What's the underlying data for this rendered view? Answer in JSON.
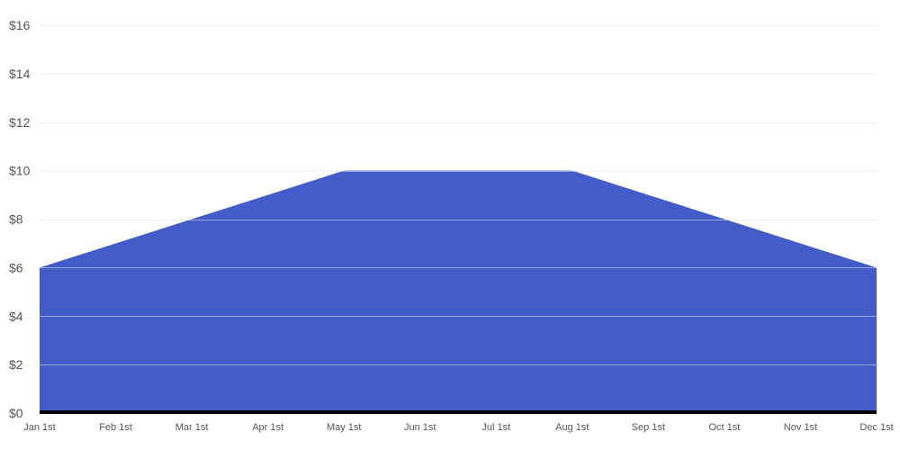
{
  "chart_data": {
    "type": "area",
    "title": "",
    "xlabel": "",
    "ylabel": "",
    "categories": [
      "Jan 1st",
      "Feb 1st",
      "Mar 1st",
      "Apr 1st",
      "May 1st",
      "Jun 1st",
      "Jul 1st",
      "Aug 1st",
      "Sep 1st",
      "Oct 1st",
      "Nov 1st",
      "Dec 1st"
    ],
    "series": [
      {
        "values": [
          6,
          7,
          8,
          9,
          10,
          10,
          10,
          10,
          9,
          8,
          7,
          6
        ],
        "color": "#435cc8"
      }
    ],
    "ylim": [
      0,
      16
    ],
    "yticks": [
      0,
      2,
      4,
      6,
      8,
      10,
      12,
      14,
      16
    ],
    "ytick_labels": [
      "$0",
      "$2",
      "$4",
      "$6",
      "$8",
      "$10",
      "$12",
      "$14",
      "$16"
    ],
    "grid": true,
    "legend": "none",
    "baseline_color": "#000000"
  }
}
